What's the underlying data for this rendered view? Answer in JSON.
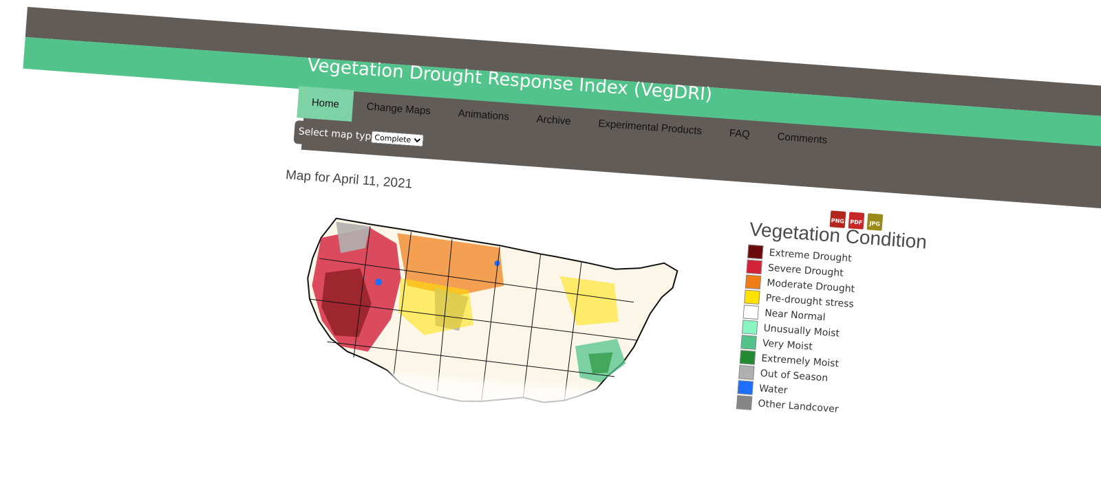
{
  "header": {
    "title": "Vegetation Drought Response Index (VegDRI)"
  },
  "nav": {
    "items": [
      {
        "label": "Home"
      },
      {
        "label": "Change Maps"
      },
      {
        "label": "Animations"
      },
      {
        "label": "Archive"
      },
      {
        "label": "Experimental Products"
      },
      {
        "label": "FAQ"
      },
      {
        "label": "Comments"
      }
    ],
    "active": "Home"
  },
  "map_type": {
    "label": "Select map type:",
    "selected": "Complete"
  },
  "map": {
    "date_title": "Map for April 11, 2021"
  },
  "downloads": [
    {
      "label": "PNG",
      "color": "#b3261e"
    },
    {
      "label": "PDF",
      "color": "#c62828"
    },
    {
      "label": "JPG",
      "color": "#9a8a1c"
    }
  ],
  "legend": {
    "title": "Vegetation Condition",
    "items": [
      {
        "label": "Extreme Drought",
        "color": "#6b0a0a"
      },
      {
        "label": "Severe Drought",
        "color": "#d4213a"
      },
      {
        "label": "Moderate Drought",
        "color": "#f07c14"
      },
      {
        "label": "Pre-drought stress",
        "color": "#ffe100"
      },
      {
        "label": "Near Normal",
        "color": "#ffffff"
      },
      {
        "label": "Unusually Moist",
        "color": "#8af5c2"
      },
      {
        "label": "Very Moist",
        "color": "#52c38a"
      },
      {
        "label": "Extremely Moist",
        "color": "#228b32"
      },
      {
        "label": "Out of Season",
        "color": "#b0b0b0"
      },
      {
        "label": "Water",
        "color": "#1f6fff"
      },
      {
        "label": "Other Landcover",
        "color": "#858585"
      }
    ]
  },
  "colors": {
    "header_dark": "#625c59",
    "header_green": "#52c38a",
    "nav_active": "#7dd3a6"
  }
}
